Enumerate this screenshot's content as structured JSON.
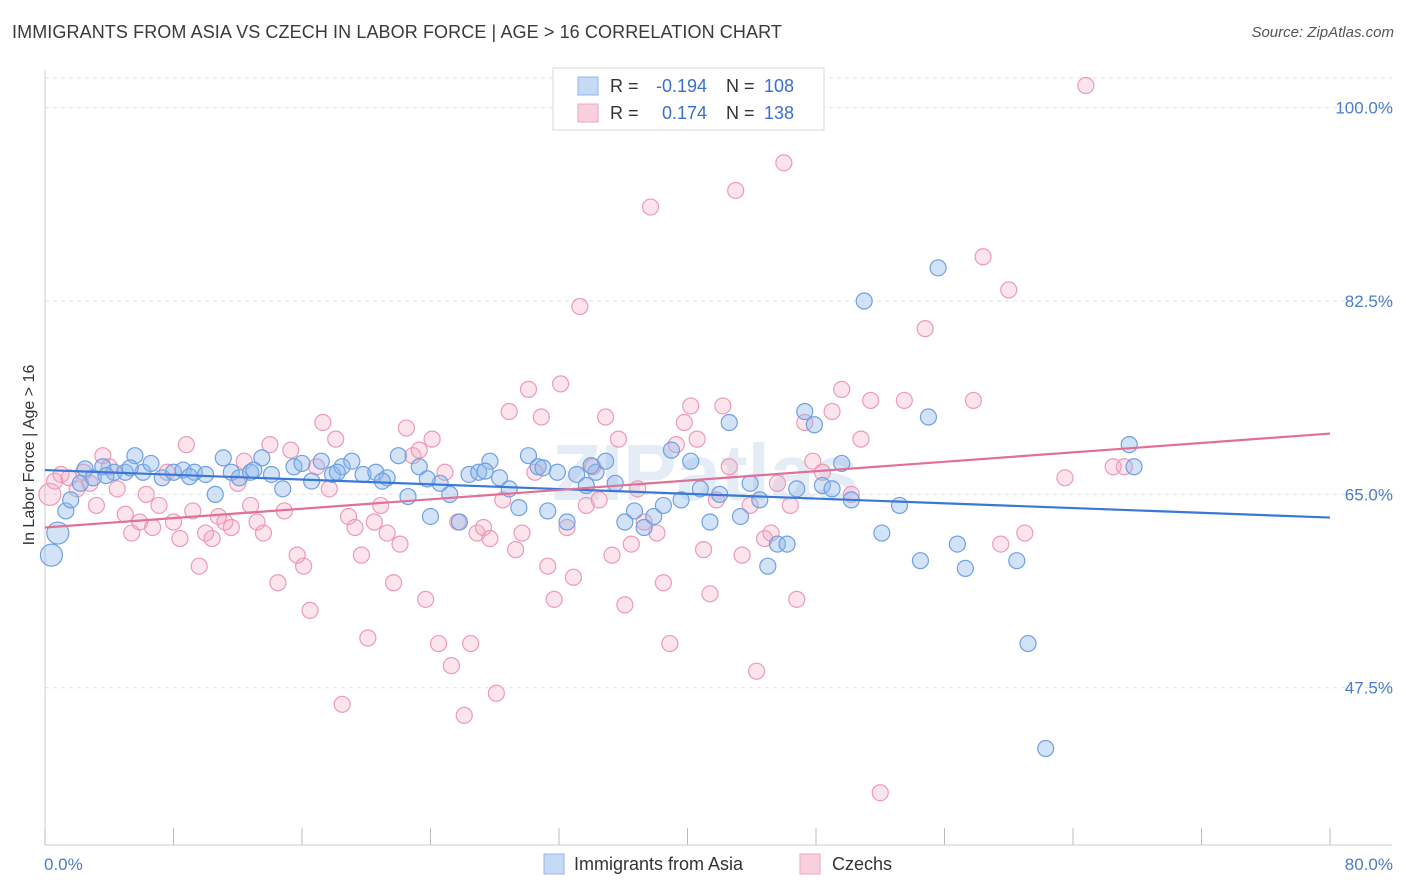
{
  "title": "IMMIGRANTS FROM ASIA VS CZECH IN LABOR FORCE | AGE > 16 CORRELATION CHART",
  "source": "Source: ZipAtlas.com",
  "watermark": "ZIPatlas",
  "colors": {
    "blue": "#8fb6ec",
    "blue_line": "#3a78d6",
    "pink": "#f1a7bf",
    "pink_line": "#e07098",
    "tick": "#4a7cc9"
  },
  "legend": {
    "rows": [
      {
        "r_label": "R =",
        "r_value": "-0.194",
        "n_label": "N =",
        "n_value": "108"
      },
      {
        "r_label": "R =",
        "r_value": "0.174",
        "n_label": "N =",
        "n_value": "138"
      }
    ]
  },
  "bottom_legend": [
    "Immigrants from Asia",
    "Czechs"
  ],
  "chart_data": {
    "type": "scatter",
    "title": "IMMIGRANTS FROM ASIA VS CZECH IN LABOR FORCE | AGE > 16 CORRELATION CHART",
    "xlabel": "",
    "ylabel": "In Labor Force | Age > 16",
    "xlim": [
      0,
      80
    ],
    "ylim": [
      32.5,
      102
    ],
    "x_tick_labels": [
      "0.0%",
      "80.0%"
    ],
    "y_ticks": [
      47.5,
      65.0,
      82.5,
      100.0
    ],
    "y_tick_labels": [
      "47.5%",
      "65.0%",
      "82.5%",
      "100.0%"
    ],
    "grid": "horizontal dashed",
    "legend_position": "top-center",
    "series": [
      {
        "name": "Immigrants from Asia",
        "trend": [
          [
            0,
            67.2
          ],
          [
            80,
            62.9
          ]
        ],
        "points": [
          [
            0.4,
            59.5
          ],
          [
            0.8,
            61.5
          ],
          [
            1.3,
            63.5
          ],
          [
            1.6,
            64.5
          ],
          [
            2.2,
            66.0
          ],
          [
            2.5,
            67.3
          ],
          [
            3.0,
            66.5
          ],
          [
            3.6,
            67.5
          ],
          [
            4.3,
            67.0
          ],
          [
            5.0,
            67.0
          ],
          [
            5.6,
            68.5
          ],
          [
            6.1,
            67.0
          ],
          [
            6.6,
            67.8
          ],
          [
            7.3,
            66.5
          ],
          [
            8.0,
            67.0
          ],
          [
            8.6,
            67.2
          ],
          [
            9.3,
            67.0
          ],
          [
            10.0,
            66.8
          ],
          [
            10.6,
            65.0
          ],
          [
            11.1,
            68.3
          ],
          [
            11.6,
            67.0
          ],
          [
            12.1,
            66.5
          ],
          [
            12.8,
            67.0
          ],
          [
            13.5,
            68.3
          ],
          [
            14.1,
            66.8
          ],
          [
            14.8,
            65.5
          ],
          [
            15.5,
            67.5
          ],
          [
            16.0,
            67.8
          ],
          [
            16.6,
            66.2
          ],
          [
            17.2,
            68.0
          ],
          [
            17.9,
            66.8
          ],
          [
            18.5,
            67.5
          ],
          [
            19.1,
            68.0
          ],
          [
            19.8,
            66.8
          ],
          [
            20.6,
            67.0
          ],
          [
            21.3,
            66.5
          ],
          [
            22.0,
            68.5
          ],
          [
            22.6,
            64.8
          ],
          [
            23.3,
            67.5
          ],
          [
            24.0,
            63.0
          ],
          [
            24.6,
            66.0
          ],
          [
            25.2,
            65.0
          ],
          [
            25.8,
            62.5
          ],
          [
            26.4,
            66.8
          ],
          [
            27.0,
            67.0
          ],
          [
            27.7,
            68.0
          ],
          [
            28.3,
            66.5
          ],
          [
            28.9,
            65.5
          ],
          [
            29.5,
            63.8
          ],
          [
            30.1,
            68.5
          ],
          [
            30.7,
            67.5
          ],
          [
            31.3,
            63.5
          ],
          [
            31.9,
            67.0
          ],
          [
            32.5,
            62.5
          ],
          [
            33.1,
            66.8
          ],
          [
            33.7,
            65.8
          ],
          [
            34.3,
            67.0
          ],
          [
            34.9,
            68.0
          ],
          [
            35.5,
            66.0
          ],
          [
            36.1,
            62.5
          ],
          [
            36.7,
            63.5
          ],
          [
            37.3,
            62.0
          ],
          [
            37.9,
            63.0
          ],
          [
            38.5,
            64.0
          ],
          [
            39.0,
            69.0
          ],
          [
            39.6,
            64.5
          ],
          [
            40.2,
            68.0
          ],
          [
            40.8,
            65.5
          ],
          [
            41.4,
            62.5
          ],
          [
            42.0,
            65.0
          ],
          [
            42.6,
            71.5
          ],
          [
            43.3,
            63.0
          ],
          [
            43.9,
            66.0
          ],
          [
            44.5,
            64.5
          ],
          [
            45.0,
            58.5
          ],
          [
            45.6,
            60.5
          ],
          [
            46.2,
            60.5
          ],
          [
            46.8,
            65.5
          ],
          [
            47.3,
            72.5
          ],
          [
            47.9,
            71.3
          ],
          [
            48.4,
            65.8
          ],
          [
            49.0,
            65.5
          ],
          [
            49.6,
            67.8
          ],
          [
            50.2,
            64.5
          ],
          [
            51.0,
            82.5
          ],
          [
            52.1,
            61.5
          ],
          [
            53.2,
            64.0
          ],
          [
            54.5,
            59.0
          ],
          [
            55.0,
            72.0
          ],
          [
            55.6,
            85.5
          ],
          [
            56.8,
            60.5
          ],
          [
            57.3,
            58.3
          ],
          [
            60.5,
            59.0
          ],
          [
            61.2,
            51.5
          ],
          [
            62.3,
            42.0
          ],
          [
            67.5,
            69.5
          ],
          [
            67.8,
            67.5
          ],
          [
            3.8,
            66.7
          ],
          [
            5.3,
            67.4
          ],
          [
            9.0,
            66.6
          ],
          [
            13.0,
            67.2
          ],
          [
            18.2,
            67.0
          ],
          [
            21.0,
            66.2
          ],
          [
            23.8,
            66.4
          ],
          [
            27.4,
            67.1
          ],
          [
            31.0,
            67.4
          ],
          [
            34.0,
            67.6
          ]
        ]
      },
      {
        "name": "Czechs",
        "trend": [
          [
            0,
            62.0
          ],
          [
            80,
            70.5
          ]
        ],
        "points": [
          [
            0.3,
            65.0
          ],
          [
            0.6,
            66.2
          ],
          [
            1.0,
            66.8
          ],
          [
            1.5,
            66.5
          ],
          [
            2.0,
            65.5
          ],
          [
            2.4,
            67.0
          ],
          [
            2.8,
            66.0
          ],
          [
            3.2,
            64.0
          ],
          [
            3.6,
            68.5
          ],
          [
            4.0,
            67.5
          ],
          [
            4.5,
            65.5
          ],
          [
            5.0,
            63.2
          ],
          [
            5.4,
            61.5
          ],
          [
            5.9,
            62.5
          ],
          [
            6.3,
            65.0
          ],
          [
            6.7,
            62.0
          ],
          [
            7.1,
            64.0
          ],
          [
            7.6,
            67.0
          ],
          [
            8.0,
            62.5
          ],
          [
            8.4,
            61.0
          ],
          [
            8.8,
            69.5
          ],
          [
            9.2,
            63.5
          ],
          [
            9.6,
            58.5
          ],
          [
            10.0,
            61.5
          ],
          [
            10.4,
            61.0
          ],
          [
            10.8,
            63.0
          ],
          [
            11.2,
            62.5
          ],
          [
            11.6,
            62.0
          ],
          [
            12.0,
            66.0
          ],
          [
            12.4,
            68.0
          ],
          [
            12.8,
            64.0
          ],
          [
            13.2,
            62.5
          ],
          [
            13.6,
            61.5
          ],
          [
            14.0,
            69.5
          ],
          [
            14.5,
            57.0
          ],
          [
            14.9,
            63.5
          ],
          [
            15.3,
            69.0
          ],
          [
            15.7,
            59.5
          ],
          [
            16.1,
            58.5
          ],
          [
            16.5,
            54.5
          ],
          [
            16.9,
            67.5
          ],
          [
            17.3,
            71.5
          ],
          [
            17.7,
            65.5
          ],
          [
            18.1,
            70.0
          ],
          [
            18.5,
            46.0
          ],
          [
            18.9,
            63.0
          ],
          [
            19.3,
            62.0
          ],
          [
            19.7,
            59.5
          ],
          [
            20.1,
            52.0
          ],
          [
            20.5,
            62.5
          ],
          [
            20.9,
            64.0
          ],
          [
            21.3,
            61.5
          ],
          [
            21.7,
            57.0
          ],
          [
            22.1,
            60.5
          ],
          [
            22.5,
            71.0
          ],
          [
            22.9,
            68.5
          ],
          [
            23.3,
            69.0
          ],
          [
            23.7,
            55.5
          ],
          [
            24.1,
            70.0
          ],
          [
            24.5,
            51.5
          ],
          [
            24.9,
            67.0
          ],
          [
            25.3,
            49.5
          ],
          [
            25.7,
            62.5
          ],
          [
            26.1,
            45.0
          ],
          [
            26.5,
            51.5
          ],
          [
            26.9,
            61.5
          ],
          [
            27.3,
            62.0
          ],
          [
            27.7,
            61.0
          ],
          [
            28.1,
            47.0
          ],
          [
            28.5,
            64.5
          ],
          [
            28.9,
            72.5
          ],
          [
            29.3,
            60.0
          ],
          [
            29.7,
            61.5
          ],
          [
            30.1,
            74.5
          ],
          [
            30.5,
            67.0
          ],
          [
            30.9,
            72.0
          ],
          [
            31.3,
            58.5
          ],
          [
            31.7,
            55.5
          ],
          [
            32.1,
            75.0
          ],
          [
            32.5,
            62.0
          ],
          [
            32.9,
            57.5
          ],
          [
            33.3,
            82.0
          ],
          [
            33.7,
            64.0
          ],
          [
            34.1,
            67.5
          ],
          [
            34.5,
            64.5
          ],
          [
            34.9,
            72.0
          ],
          [
            35.3,
            59.5
          ],
          [
            35.7,
            70.0
          ],
          [
            36.1,
            55.0
          ],
          [
            36.5,
            60.5
          ],
          [
            36.9,
            65.5
          ],
          [
            37.3,
            62.5
          ],
          [
            37.7,
            91.0
          ],
          [
            38.1,
            61.5
          ],
          [
            38.5,
            57.0
          ],
          [
            38.9,
            51.5
          ],
          [
            39.3,
            69.5
          ],
          [
            39.8,
            71.5
          ],
          [
            40.2,
            73.0
          ],
          [
            40.6,
            70.0
          ],
          [
            41.0,
            60.0
          ],
          [
            41.4,
            56.0
          ],
          [
            41.8,
            64.5
          ],
          [
            42.2,
            73.0
          ],
          [
            42.6,
            67.5
          ],
          [
            43.0,
            92.5
          ],
          [
            43.4,
            59.5
          ],
          [
            43.9,
            64.0
          ],
          [
            44.3,
            49.0
          ],
          [
            44.8,
            61.0
          ],
          [
            45.2,
            61.5
          ],
          [
            45.6,
            66.0
          ],
          [
            46.0,
            95.0
          ],
          [
            46.4,
            64.0
          ],
          [
            46.8,
            55.5
          ],
          [
            47.3,
            71.5
          ],
          [
            47.8,
            68.0
          ],
          [
            48.4,
            67.0
          ],
          [
            49.0,
            72.5
          ],
          [
            49.6,
            74.5
          ],
          [
            50.2,
            65.0
          ],
          [
            50.8,
            70.0
          ],
          [
            51.4,
            73.5
          ],
          [
            52.0,
            38.0
          ],
          [
            53.5,
            73.5
          ],
          [
            54.8,
            80.0
          ],
          [
            57.8,
            73.5
          ],
          [
            58.4,
            86.5
          ],
          [
            59.5,
            60.5
          ],
          [
            60.0,
            83.5
          ],
          [
            61.0,
            61.5
          ],
          [
            63.5,
            66.5
          ],
          [
            64.8,
            102.0
          ],
          [
            66.5,
            67.5
          ],
          [
            67.2,
            67.5
          ]
        ]
      }
    ]
  }
}
